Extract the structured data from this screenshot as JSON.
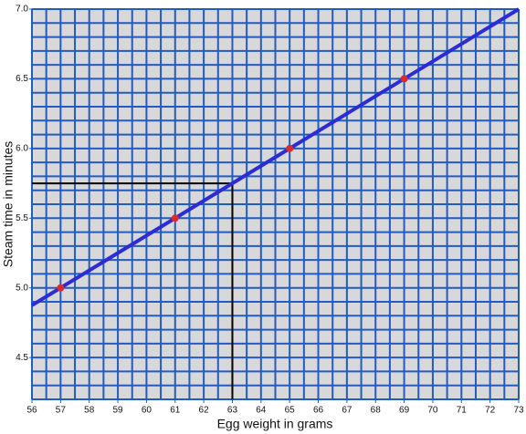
{
  "chart_data": {
    "type": "scatter",
    "xlabel": "Egg weight in grams",
    "ylabel": "Steam time in minutes",
    "xlim": [
      56,
      73
    ],
    "ylim": [
      4.2,
      7.0
    ],
    "xticks": [
      56,
      57,
      58,
      59,
      60,
      61,
      62,
      63,
      64,
      65,
      66,
      67,
      68,
      69,
      70,
      71,
      72,
      73
    ],
    "yticks": [
      4.5,
      {
        "value": 5,
        "label": "5.0"
      },
      5.5,
      {
        "value": 6,
        "label": "6.0"
      },
      6.5,
      {
        "value": 7,
        "label": "7.0"
      }
    ],
    "grid": true,
    "grid_step": {
      "x": 0.5,
      "y": 0.1
    },
    "grid_color": "#1f5cc4",
    "background": "#d8d8d8",
    "points": {
      "color": "#e02a2a",
      "x": [
        57,
        61,
        65,
        69
      ],
      "values": [
        5.0,
        5.5,
        6.0,
        6.5
      ]
    },
    "fit_line": {
      "color": "#2b2bd9",
      "x": [
        56,
        73
      ],
      "values": [
        4.875,
        7.0
      ]
    },
    "reference": {
      "color": "#000000",
      "x": 63,
      "y": 5.75
    }
  }
}
